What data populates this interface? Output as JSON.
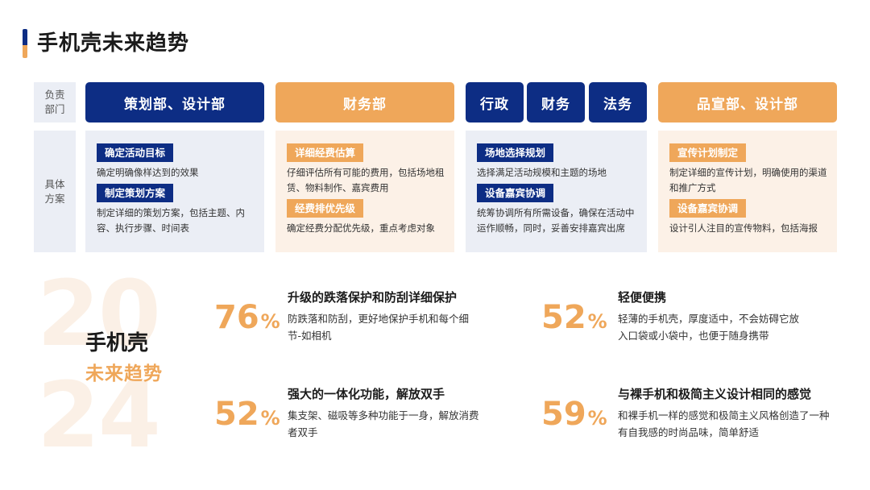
{
  "title": "手机壳未来趋势",
  "row_labels": {
    "responsible": "负责\n部门",
    "plan": "具体\n方案"
  },
  "departments": {
    "d1": "策划部、设计部",
    "d2": "财务部",
    "d3a": "行政",
    "d3b": "财务",
    "d3c": "法务",
    "d4": "品宣部、设计部"
  },
  "plans": {
    "c1": {
      "tag1": "确定活动目标",
      "desc1": "确定明确像样达到的效果",
      "tag2": "制定策划方案",
      "desc2": "制定详细的策划方案，包括主题、内容、执行步骤、时间表"
    },
    "c2": {
      "tag1": "详细经费估算",
      "desc1": "仔细评估所有可能的费用，包括场地租赁、物料制作、嘉宾费用",
      "tag2": "经费排优先级",
      "desc2": "确定经费分配优先级，重点考虑对象"
    },
    "c3": {
      "tag1": "场地选择规划",
      "desc1": "选择满足活动规模和主题的场地",
      "tag2": "设备嘉宾协调",
      "desc2": "统筹协调所有所需设备，确保在活动中运作顺畅，同时，妥善安排嘉宾出席"
    },
    "c4": {
      "tag1": "宣传计划制定",
      "desc1": "制定详细的宣传计划，明确使用的渠道和推广方式",
      "tag2": "设备嘉宾协调",
      "desc2": "设计引人注目的宣传物料，包括海报"
    }
  },
  "year": {
    "part1": "20",
    "part2": "24"
  },
  "left_title": "手机壳",
  "left_subtitle": "未来趋势",
  "features": [
    {
      "percent": "76",
      "unit": "%",
      "title": "升级的跌落保护和防刮详细保护",
      "desc": "防跌落和防刮，更好地保护手机和每个细节-如相机"
    },
    {
      "percent": "52",
      "unit": "%",
      "title": "轻便便携",
      "desc": "轻薄的手机壳，厚度适中，不会妨碍它放入口袋或小袋中，也便于随身携带"
    },
    {
      "percent": "52",
      "unit": "%",
      "title": "强大的一体化功能，解放双手",
      "desc": "集支架、磁吸等多种功能于一身，解放消费者双手"
    },
    {
      "percent": "59",
      "unit": "%",
      "title": "与裸手机和极简主义设计相同的感觉",
      "desc": "和裸手机一样的感觉和极简主义风格创造了一种有自我感的时尚品味，简单舒适"
    }
  ],
  "colors": {
    "navy": "#0d2d84",
    "orange": "#efa75a",
    "light_blue": "#ebeef5",
    "light_orange": "#fcf1e7"
  }
}
